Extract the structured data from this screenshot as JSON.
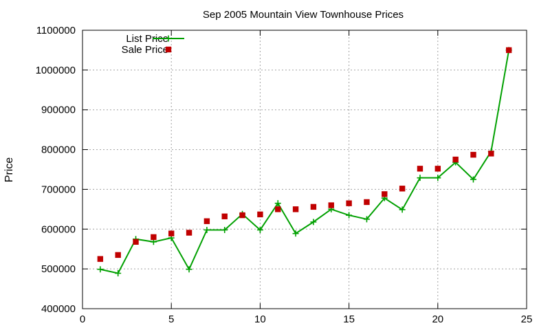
{
  "chart_data": {
    "type": "line",
    "title": "Sep 2005 Mountain View Townhouse Prices",
    "xlabel": "",
    "ylabel": "Price",
    "xlim": [
      0,
      25
    ],
    "ylim": [
      400000,
      1100000
    ],
    "xticks": [
      0,
      5,
      10,
      15,
      20,
      25
    ],
    "yticks": [
      400000,
      500000,
      600000,
      700000,
      800000,
      900000,
      1000000,
      1100000
    ],
    "grid": true,
    "legend_position": "top-left",
    "x": [
      1,
      2,
      3,
      4,
      5,
      6,
      7,
      8,
      9,
      10,
      11,
      12,
      13,
      14,
      15,
      16,
      17,
      18,
      19,
      20,
      21,
      22,
      23,
      24
    ],
    "series": [
      {
        "name": "List Price",
        "kind": "line-with-plus-markers",
        "color": "#00a000",
        "values": [
          499000,
          489000,
          575000,
          568000,
          578000,
          499000,
          598000,
          598000,
          638000,
          598000,
          665000,
          589000,
          618000,
          650000,
          635000,
          625000,
          678000,
          649000,
          729000,
          729000,
          768000,
          725000,
          795000,
          1050000
        ]
      },
      {
        "name": "Sale Price",
        "kind": "square-markers",
        "color": "#c00000",
        "values": [
          525000,
          535000,
          568000,
          580000,
          589000,
          591000,
          620000,
          632000,
          635000,
          637000,
          650000,
          650000,
          656000,
          660000,
          665000,
          668000,
          688000,
          702000,
          752000,
          752000,
          775000,
          787000,
          790000,
          1050000
        ]
      }
    ]
  }
}
